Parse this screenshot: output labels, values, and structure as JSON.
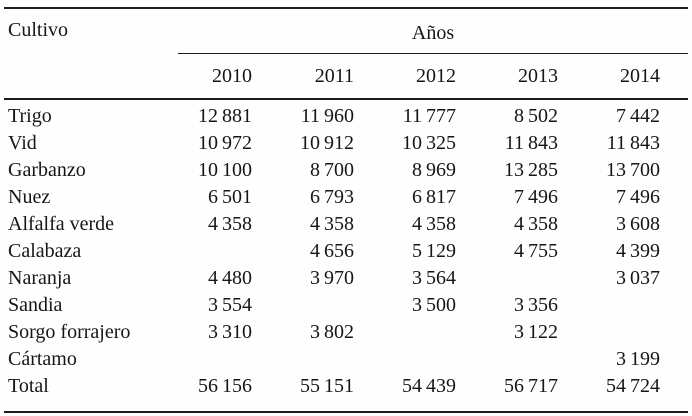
{
  "colors": {
    "background": "#fefefe",
    "text": "#161616",
    "rule": "#1c1c1c"
  },
  "table": {
    "corner_header": "Cultivo",
    "group_header": "Años",
    "year_headers": [
      "2010",
      "2011",
      "2012",
      "2013",
      "2014"
    ],
    "number_group_separator": "thin-space",
    "rows": [
      {
        "label": "Trigo",
        "values": [
          12881,
          11960,
          11777,
          8502,
          7442
        ]
      },
      {
        "label": "Vid",
        "values": [
          10972,
          10912,
          10325,
          11843,
          11843
        ]
      },
      {
        "label": "Garbanzo",
        "values": [
          10100,
          8700,
          8969,
          13285,
          13700
        ]
      },
      {
        "label": "Nuez",
        "values": [
          6501,
          6793,
          6817,
          7496,
          7496
        ]
      },
      {
        "label": "Alfalfa verde",
        "values": [
          4358,
          4358,
          4358,
          4358,
          3608
        ]
      },
      {
        "label": "Calabaza",
        "values": [
          null,
          4656,
          5129,
          4755,
          4399
        ]
      },
      {
        "label": "Naranja",
        "values": [
          4480,
          3970,
          3564,
          null,
          3037
        ]
      },
      {
        "label": "Sandia",
        "values": [
          3554,
          null,
          3500,
          3356,
          null
        ]
      },
      {
        "label": "Sorgo forrajero",
        "values": [
          3310,
          3802,
          null,
          3122,
          null
        ]
      },
      {
        "label": "Cártamo",
        "values": [
          null,
          null,
          null,
          null,
          3199
        ]
      },
      {
        "label": "Total",
        "values": [
          56156,
          55151,
          54439,
          56717,
          54724
        ]
      }
    ]
  },
  "chart_data": {
    "type": "table",
    "title": "",
    "row_header_label": "Cultivo",
    "column_group_label": "Años",
    "categories": [
      "2010",
      "2011",
      "2012",
      "2013",
      "2014"
    ],
    "series": [
      {
        "name": "Trigo",
        "values": [
          12881,
          11960,
          11777,
          8502,
          7442
        ]
      },
      {
        "name": "Vid",
        "values": [
          10972,
          10912,
          10325,
          11843,
          11843
        ]
      },
      {
        "name": "Garbanzo",
        "values": [
          10100,
          8700,
          8969,
          13285,
          13700
        ]
      },
      {
        "name": "Nuez",
        "values": [
          6501,
          6793,
          6817,
          7496,
          7496
        ]
      },
      {
        "name": "Alfalfa verde",
        "values": [
          4358,
          4358,
          4358,
          4358,
          3608
        ]
      },
      {
        "name": "Calabaza",
        "values": [
          null,
          4656,
          5129,
          4755,
          4399
        ]
      },
      {
        "name": "Naranja",
        "values": [
          4480,
          3970,
          3564,
          null,
          3037
        ]
      },
      {
        "name": "Sandia",
        "values": [
          3554,
          null,
          3500,
          3356,
          null
        ]
      },
      {
        "name": "Sorgo forrajero",
        "values": [
          3310,
          3802,
          null,
          3122,
          null
        ]
      },
      {
        "name": "Cártamo",
        "values": [
          null,
          null,
          null,
          null,
          3199
        ]
      },
      {
        "name": "Total",
        "values": [
          56156,
          55151,
          54439,
          56717,
          54724
        ]
      }
    ]
  }
}
